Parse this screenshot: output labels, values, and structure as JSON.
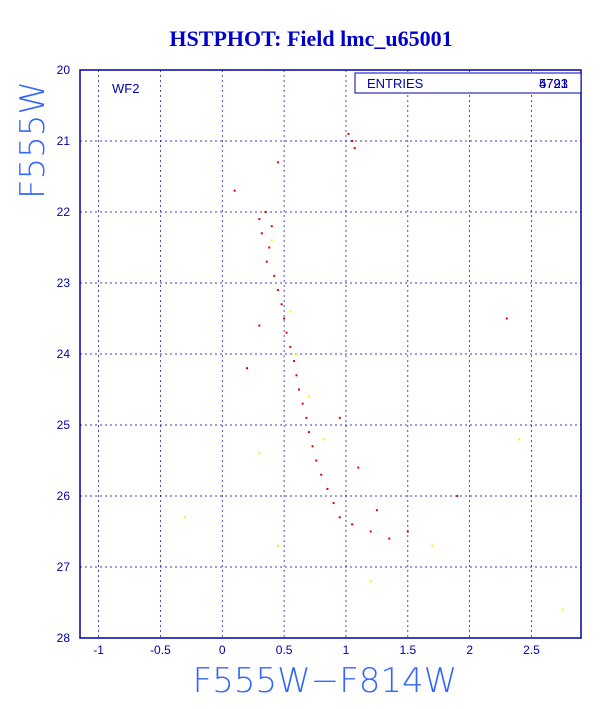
{
  "chart_data": {
    "type": "scatter",
    "title": "HSTPHOT: Field lmc_u65001",
    "xlabel": "F555W−F814W",
    "ylabel": "F555W",
    "xlim": [
      -1.15,
      2.9
    ],
    "ylim": [
      28,
      20
    ],
    "y_inverted": true,
    "grid": true,
    "x_ticks": [
      "-1",
      "-0.5",
      "0",
      "0.5",
      "1",
      "1.5",
      "2",
      "2.5"
    ],
    "y_ticks": [
      "20",
      "21",
      "22",
      "23",
      "24",
      "25",
      "26",
      "27",
      "28"
    ],
    "panel_label": "WF2",
    "stats_box": {
      "label": "ENTRIES",
      "values": [
        "5793",
        "4721"
      ]
    },
    "colors": {
      "series_main": "#dd0000",
      "series_secondary": "#ffee00",
      "axis": "#0000aa",
      "title": "#0000cc",
      "axis_label": "#3366ff"
    },
    "series": [
      {
        "name": "",
        "color": "#dd0000",
        "points": [
          [
            0.3,
            22.1
          ],
          [
            0.32,
            22.3
          ],
          [
            0.35,
            22.0
          ],
          [
            0.38,
            22.5
          ],
          [
            0.4,
            22.2
          ],
          [
            0.36,
            22.7
          ],
          [
            0.42,
            22.9
          ],
          [
            0.45,
            23.1
          ],
          [
            0.48,
            23.3
          ],
          [
            0.5,
            23.5
          ],
          [
            0.52,
            23.7
          ],
          [
            0.55,
            23.9
          ],
          [
            0.58,
            24.1
          ],
          [
            0.6,
            24.3
          ],
          [
            0.62,
            24.5
          ],
          [
            0.65,
            24.7
          ],
          [
            0.68,
            24.9
          ],
          [
            0.7,
            25.1
          ],
          [
            0.73,
            25.3
          ],
          [
            0.76,
            25.5
          ],
          [
            0.8,
            25.7
          ],
          [
            0.85,
            25.9
          ],
          [
            0.9,
            26.1
          ],
          [
            0.95,
            26.3
          ],
          [
            1.05,
            26.4
          ],
          [
            1.2,
            26.5
          ],
          [
            1.35,
            26.6
          ],
          [
            1.5,
            26.5
          ],
          [
            1.05,
            21.0
          ],
          [
            1.02,
            20.9
          ],
          [
            1.07,
            21.1
          ],
          [
            0.45,
            21.3
          ],
          [
            0.1,
            21.7
          ],
          [
            0.95,
            24.9
          ],
          [
            1.1,
            25.6
          ],
          [
            1.25,
            26.2
          ],
          [
            0.3,
            23.6
          ],
          [
            0.2,
            24.2
          ],
          [
            1.9,
            26.0
          ],
          [
            2.3,
            23.5
          ]
        ]
      },
      {
        "name": "",
        "color": "#ffee00",
        "points": [
          [
            0.4,
            22.4
          ],
          [
            0.55,
            23.4
          ],
          [
            0.6,
            24.0
          ],
          [
            0.7,
            24.6
          ],
          [
            0.82,
            25.2
          ],
          [
            0.3,
            25.4
          ],
          [
            1.7,
            26.7
          ],
          [
            2.4,
            25.2
          ],
          [
            -0.3,
            26.3
          ],
          [
            2.75,
            27.6
          ],
          [
            0.45,
            26.7
          ],
          [
            1.2,
            27.2
          ]
        ]
      }
    ]
  }
}
